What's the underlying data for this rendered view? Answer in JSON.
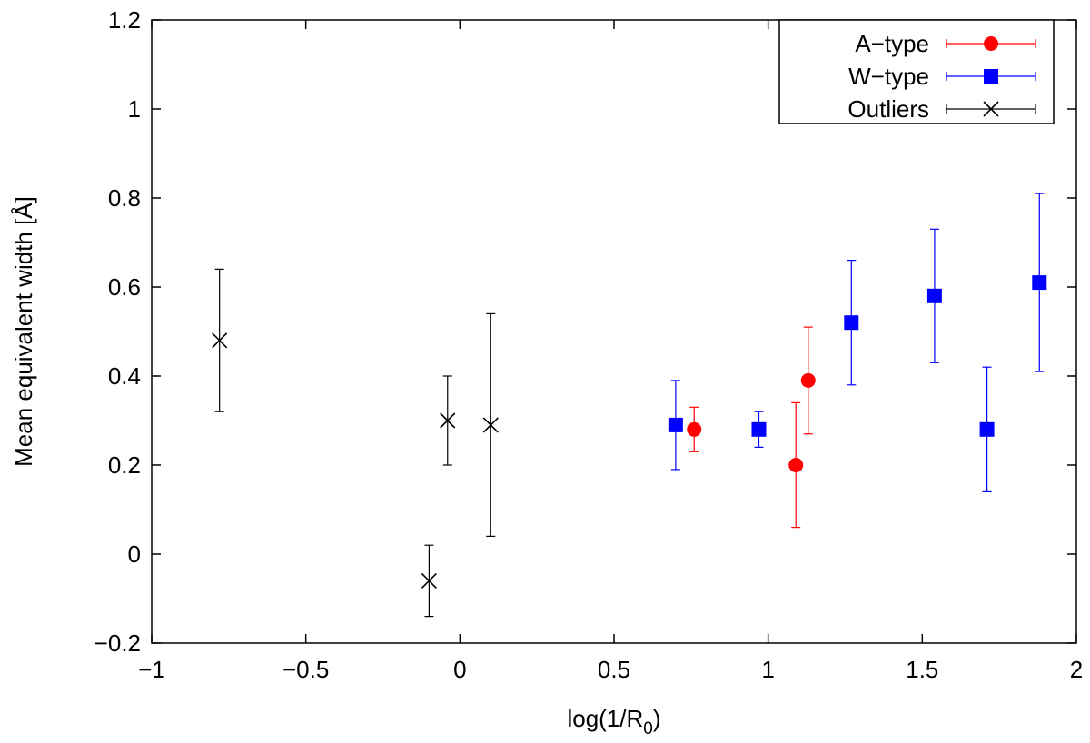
{
  "chart_data": {
    "type": "scatter",
    "title": "",
    "xlabel": "log(1/R",
    "xlabel_sub": "0",
    "xlabel_suffix": ")",
    "ylabel": "Mean equivalent width [Å]",
    "xlim": [
      -1,
      2
    ],
    "ylim": [
      -0.2,
      1.2
    ],
    "x_ticks": [
      -1,
      -0.5,
      0,
      0.5,
      1,
      1.5,
      2
    ],
    "x_tick_labels": [
      "−1",
      "−0.5",
      "0",
      "0.5",
      "1",
      "1.5",
      "2"
    ],
    "y_ticks": [
      -0.2,
      0,
      0.2,
      0.4,
      0.6,
      0.8,
      1,
      1.2
    ],
    "y_tick_labels": [
      "−0.2",
      "0",
      "0.2",
      "0.4",
      "0.6",
      "0.8",
      "1",
      "1.2"
    ],
    "grid": false,
    "legend_position": "top-right",
    "series": [
      {
        "name": "A−type",
        "color": "#ff0000",
        "marker": "circle",
        "points": [
          {
            "x": 0.76,
            "y": 0.28,
            "err": 0.05
          },
          {
            "x": 1.09,
            "y": 0.2,
            "err": 0.14
          },
          {
            "x": 1.13,
            "y": 0.39,
            "err": 0.12
          }
        ]
      },
      {
        "name": "W−type",
        "color": "#0000ff",
        "marker": "square",
        "points": [
          {
            "x": 0.7,
            "y": 0.29,
            "err": 0.1
          },
          {
            "x": 0.97,
            "y": 0.28,
            "err": 0.04
          },
          {
            "x": 1.27,
            "y": 0.52,
            "err": 0.14
          },
          {
            "x": 1.54,
            "y": 0.58,
            "err": 0.15
          },
          {
            "x": 1.71,
            "y": 0.28,
            "err": 0.14
          },
          {
            "x": 1.88,
            "y": 0.61,
            "err": 0.2
          }
        ]
      },
      {
        "name": "Outliers",
        "color": "#000000",
        "marker": "cross",
        "points": [
          {
            "x": -0.78,
            "y": 0.48,
            "err": 0.16
          },
          {
            "x": -0.1,
            "y": -0.06,
            "err": 0.08
          },
          {
            "x": -0.04,
            "y": 0.3,
            "err": 0.1
          },
          {
            "x": 0.1,
            "y": 0.29,
            "err": 0.25
          }
        ]
      }
    ]
  }
}
